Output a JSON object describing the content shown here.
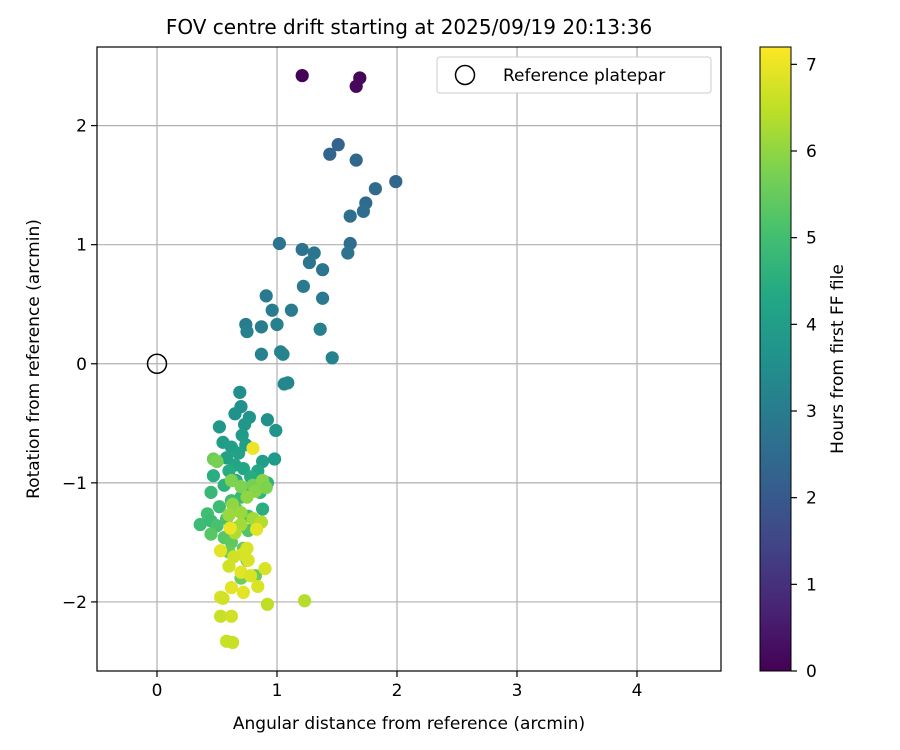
{
  "chart_data": {
    "type": "scatter",
    "title": "FOV centre drift starting at 2025/09/19 20:13:36",
    "xlabel": "Angular distance from reference (arcmin)",
    "ylabel": "Rotation from reference (arcmin)",
    "xlim": [
      -0.5,
      4.7
    ],
    "ylim": [
      -2.58,
      2.66
    ],
    "xticks": [
      0,
      1,
      2,
      3,
      4
    ],
    "yticks": [
      -2,
      -1,
      0,
      1,
      2
    ],
    "grid": true,
    "legend": {
      "position": "top-right",
      "entries": [
        {
          "label": "Reference platepar",
          "marker": "open-circle"
        }
      ]
    },
    "reference_point": {
      "x": 0,
      "y": 0,
      "label": "Reference platepar"
    },
    "colorbar": {
      "label": "Hours from first FF file",
      "colormap": "viridis",
      "range": [
        0,
        7.2
      ],
      "ticks": [
        0,
        1,
        2,
        3,
        4,
        5,
        6,
        7
      ]
    },
    "points": [
      [
        1.21,
        2.42,
        0.05
      ],
      [
        1.69,
        2.4,
        0.1
      ],
      [
        1.66,
        2.33,
        0.15
      ],
      [
        1.51,
        1.84,
        2.3
      ],
      [
        1.44,
        1.76,
        2.3
      ],
      [
        1.66,
        1.71,
        2.4
      ],
      [
        1.99,
        1.53,
        2.4
      ],
      [
        1.82,
        1.47,
        2.5
      ],
      [
        1.74,
        1.35,
        2.5
      ],
      [
        1.72,
        1.28,
        2.6
      ],
      [
        1.61,
        1.24,
        2.6
      ],
      [
        1.61,
        1.01,
        2.6
      ],
      [
        1.02,
        1.01,
        2.7
      ],
      [
        1.21,
        0.96,
        2.7
      ],
      [
        1.59,
        0.93,
        2.7
      ],
      [
        1.31,
        0.93,
        2.8
      ],
      [
        1.27,
        0.85,
        2.8
      ],
      [
        1.38,
        0.79,
        2.8
      ],
      [
        1.22,
        0.65,
        2.9
      ],
      [
        0.91,
        0.57,
        2.9
      ],
      [
        1.38,
        0.55,
        2.9
      ],
      [
        0.96,
        0.45,
        3.0
      ],
      [
        1.12,
        0.45,
        3.0
      ],
      [
        0.74,
        0.33,
        3.0
      ],
      [
        0.87,
        0.31,
        3.0
      ],
      [
        1.0,
        0.33,
        3.1
      ],
      [
        0.75,
        0.27,
        3.1
      ],
      [
        1.36,
        0.29,
        3.1
      ],
      [
        1.03,
        0.1,
        3.2
      ],
      [
        1.05,
        0.08,
        3.2
      ],
      [
        0.87,
        0.08,
        3.2
      ],
      [
        1.46,
        0.05,
        3.2
      ],
      [
        1.09,
        -0.16,
        3.3
      ],
      [
        1.06,
        -0.17,
        3.3
      ],
      [
        0.69,
        -0.24,
        3.5
      ],
      [
        0.7,
        -0.36,
        3.6
      ],
      [
        0.65,
        -0.42,
        3.6
      ],
      [
        0.77,
        -0.45,
        3.7
      ],
      [
        0.92,
        -0.47,
        3.6
      ],
      [
        0.73,
        -0.51,
        3.8
      ],
      [
        0.52,
        -0.53,
        3.8
      ],
      [
        0.99,
        -0.56,
        3.7
      ],
      [
        0.71,
        -0.6,
        3.9
      ],
      [
        0.55,
        -0.66,
        4.0
      ],
      [
        0.62,
        -0.7,
        4.0
      ],
      [
        0.74,
        -0.68,
        4.0
      ],
      [
        0.68,
        -0.75,
        4.1
      ],
      [
        0.58,
        -0.79,
        4.1
      ],
      [
        0.88,
        -0.82,
        4.0
      ],
      [
        0.98,
        -0.8,
        3.9
      ],
      [
        0.65,
        -0.85,
        4.2
      ],
      [
        0.72,
        -0.88,
        4.3
      ],
      [
        0.84,
        -0.9,
        4.3
      ],
      [
        0.6,
        -0.9,
        4.4
      ],
      [
        0.78,
        -0.95,
        4.4
      ],
      [
        0.47,
        -0.94,
        4.5
      ],
      [
        0.66,
        -0.98,
        4.5
      ],
      [
        0.92,
        -1.0,
        4.6
      ],
      [
        0.56,
        -1.02,
        4.6
      ],
      [
        0.75,
        -1.05,
        4.7
      ],
      [
        0.86,
        -1.08,
        4.7
      ],
      [
        0.45,
        -1.08,
        4.8
      ],
      [
        0.7,
        -1.12,
        4.8
      ],
      [
        0.62,
        -1.15,
        4.9
      ],
      [
        0.88,
        -1.22,
        4.5
      ],
      [
        0.52,
        -1.2,
        4.9
      ],
      [
        0.66,
        -1.22,
        5.0
      ],
      [
        0.42,
        -1.26,
        5.0
      ],
      [
        0.76,
        -1.28,
        5.0
      ],
      [
        0.58,
        -1.3,
        5.1
      ],
      [
        0.45,
        -1.32,
        4.9
      ],
      [
        0.36,
        -1.35,
        4.9
      ],
      [
        0.5,
        -1.36,
        5.1
      ],
      [
        0.66,
        -1.38,
        5.2
      ],
      [
        0.76,
        -1.4,
        5.2
      ],
      [
        0.45,
        -1.43,
        5.3
      ],
      [
        0.56,
        -1.46,
        5.3
      ],
      [
        0.62,
        -1.5,
        5.4
      ],
      [
        0.72,
        -1.55,
        5.4
      ],
      [
        0.6,
        -1.58,
        5.5
      ],
      [
        0.75,
        -1.65,
        5.5
      ],
      [
        0.82,
        -1.78,
        5.5
      ],
      [
        0.7,
        -1.8,
        5.6
      ],
      [
        0.47,
        -0.8,
        5.6
      ],
      [
        0.5,
        -0.82,
        5.7
      ],
      [
        0.62,
        -0.98,
        5.8
      ],
      [
        0.7,
        -1.03,
        5.8
      ],
      [
        0.8,
        -1.02,
        5.7
      ],
      [
        0.88,
        -0.98,
        5.9
      ],
      [
        0.82,
        -1.07,
        5.9
      ],
      [
        0.91,
        -1.04,
        5.8
      ],
      [
        0.75,
        -1.12,
        6.0
      ],
      [
        0.63,
        -1.18,
        6.0
      ],
      [
        0.7,
        -1.25,
        6.1
      ],
      [
        0.6,
        -1.27,
        6.1
      ],
      [
        0.8,
        -1.3,
        6.2
      ],
      [
        0.7,
        -1.35,
        6.2
      ],
      [
        0.87,
        -1.33,
        6.4
      ],
      [
        0.65,
        -1.42,
        6.3
      ],
      [
        0.8,
        -0.71,
        7.0
      ],
      [
        0.61,
        -1.38,
        7.0
      ],
      [
        0.83,
        -1.39,
        6.9
      ],
      [
        0.53,
        -1.57,
        6.9
      ],
      [
        0.71,
        -1.6,
        6.8
      ],
      [
        0.75,
        -1.55,
        6.8
      ],
      [
        0.64,
        -1.62,
        6.7
      ],
      [
        0.76,
        -1.65,
        6.8
      ],
      [
        0.6,
        -1.7,
        6.7
      ],
      [
        0.9,
        -1.72,
        6.8
      ],
      [
        0.7,
        -1.75,
        6.9
      ],
      [
        0.78,
        -1.78,
        6.8
      ],
      [
        0.62,
        -1.88,
        6.9
      ],
      [
        0.84,
        -1.87,
        6.8
      ],
      [
        0.72,
        -1.92,
        6.9
      ],
      [
        0.53,
        -1.96,
        6.8
      ],
      [
        0.55,
        -1.97,
        6.7
      ],
      [
        0.92,
        -2.02,
        6.5
      ],
      [
        1.23,
        -1.99,
        6.4
      ],
      [
        0.53,
        -2.12,
        6.6
      ],
      [
        0.62,
        -2.12,
        6.7
      ],
      [
        0.58,
        -2.33,
        6.6
      ],
      [
        0.63,
        -2.34,
        6.6
      ]
    ]
  }
}
